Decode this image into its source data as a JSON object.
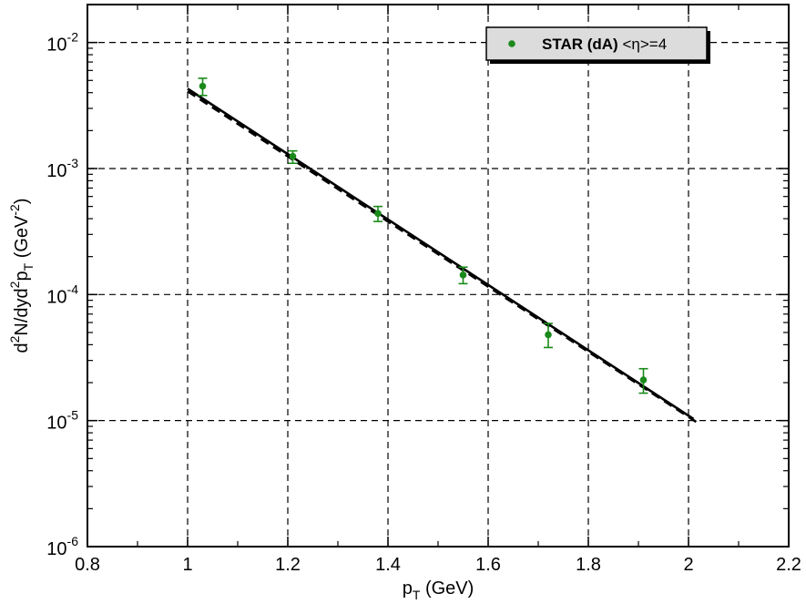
{
  "chart_data": {
    "type": "scatter",
    "xlim": [
      0.8,
      2.2
    ],
    "ylim": [
      1e-06,
      0.02
    ],
    "yscale": "log",
    "x_major_ticks": [
      0.8,
      1,
      1.2,
      1.4,
      1.6,
      1.8,
      2,
      2.2
    ],
    "x_tick_labels": [
      "0.8",
      "1",
      "1.2",
      "1.4",
      "1.6",
      "1.8",
      "2",
      "2.2"
    ],
    "y_major_ticks": [
      1e-06,
      1e-05,
      0.0001,
      0.001,
      0.01
    ],
    "y_tick_labels": [
      {
        "base": "10",
        "exp": "-6"
      },
      {
        "base": "10",
        "exp": "-5"
      },
      {
        "base": "10",
        "exp": "-4"
      },
      {
        "base": "10",
        "exp": "-3"
      },
      {
        "base": "10",
        "exp": "-2"
      }
    ],
    "grid": true,
    "grid_style": "dashed",
    "xlabel": {
      "main": "p",
      "sub": "T",
      "rest": " (GeV)"
    },
    "ylabel": {
      "parts": [
        {
          "t": "d"
        },
        {
          "t": "2",
          "s": "sup"
        },
        {
          "t": "N/dyd"
        },
        {
          "t": "2",
          "s": "sup"
        },
        {
          "t": "p"
        },
        {
          "t": "T",
          "s": "sub"
        },
        {
          "t": " (GeV"
        },
        {
          "t": "-2",
          "s": "sup"
        },
        {
          "t": ")"
        }
      ]
    },
    "legend": {
      "placement": "top-right",
      "entries": [
        {
          "label_bold": "STAR (dA)",
          "label_rest": " <η>=4",
          "color": "#1a8a1a",
          "marker": "circle"
        }
      ]
    },
    "series": [
      {
        "name": "STAR (dA) <η>=4",
        "kind": "points",
        "color": "#1a8a1a",
        "points": [
          {
            "x": 1.03,
            "y": 0.0045,
            "err_lo": 0.0038,
            "err_hi": 0.0052
          },
          {
            "x": 1.21,
            "y": 0.00125,
            "err_lo": 0.0011,
            "err_hi": 0.00138
          },
          {
            "x": 1.38,
            "y": 0.00044,
            "err_lo": 0.00038,
            "err_hi": 0.0005
          },
          {
            "x": 1.55,
            "y": 0.000143,
            "err_lo": 0.000122,
            "err_hi": 0.000165
          },
          {
            "x": 1.72,
            "y": 4.8e-05,
            "err_lo": 3.8e-05,
            "err_hi": 5.9e-05
          },
          {
            "x": 1.91,
            "y": 2.1e-05,
            "err_lo": 1.65e-05,
            "err_hi": 2.58e-05
          }
        ]
      },
      {
        "kind": "line",
        "style": "solid",
        "color": "#000000",
        "x": [
          1.0,
          2.01
        ],
        "y": [
          0.0043,
          1.03e-05
        ]
      },
      {
        "kind": "line",
        "style": "dashed",
        "color": "#000000",
        "x": [
          1.0,
          2.02
        ],
        "y": [
          0.0041,
          9.5e-06
        ]
      }
    ]
  }
}
